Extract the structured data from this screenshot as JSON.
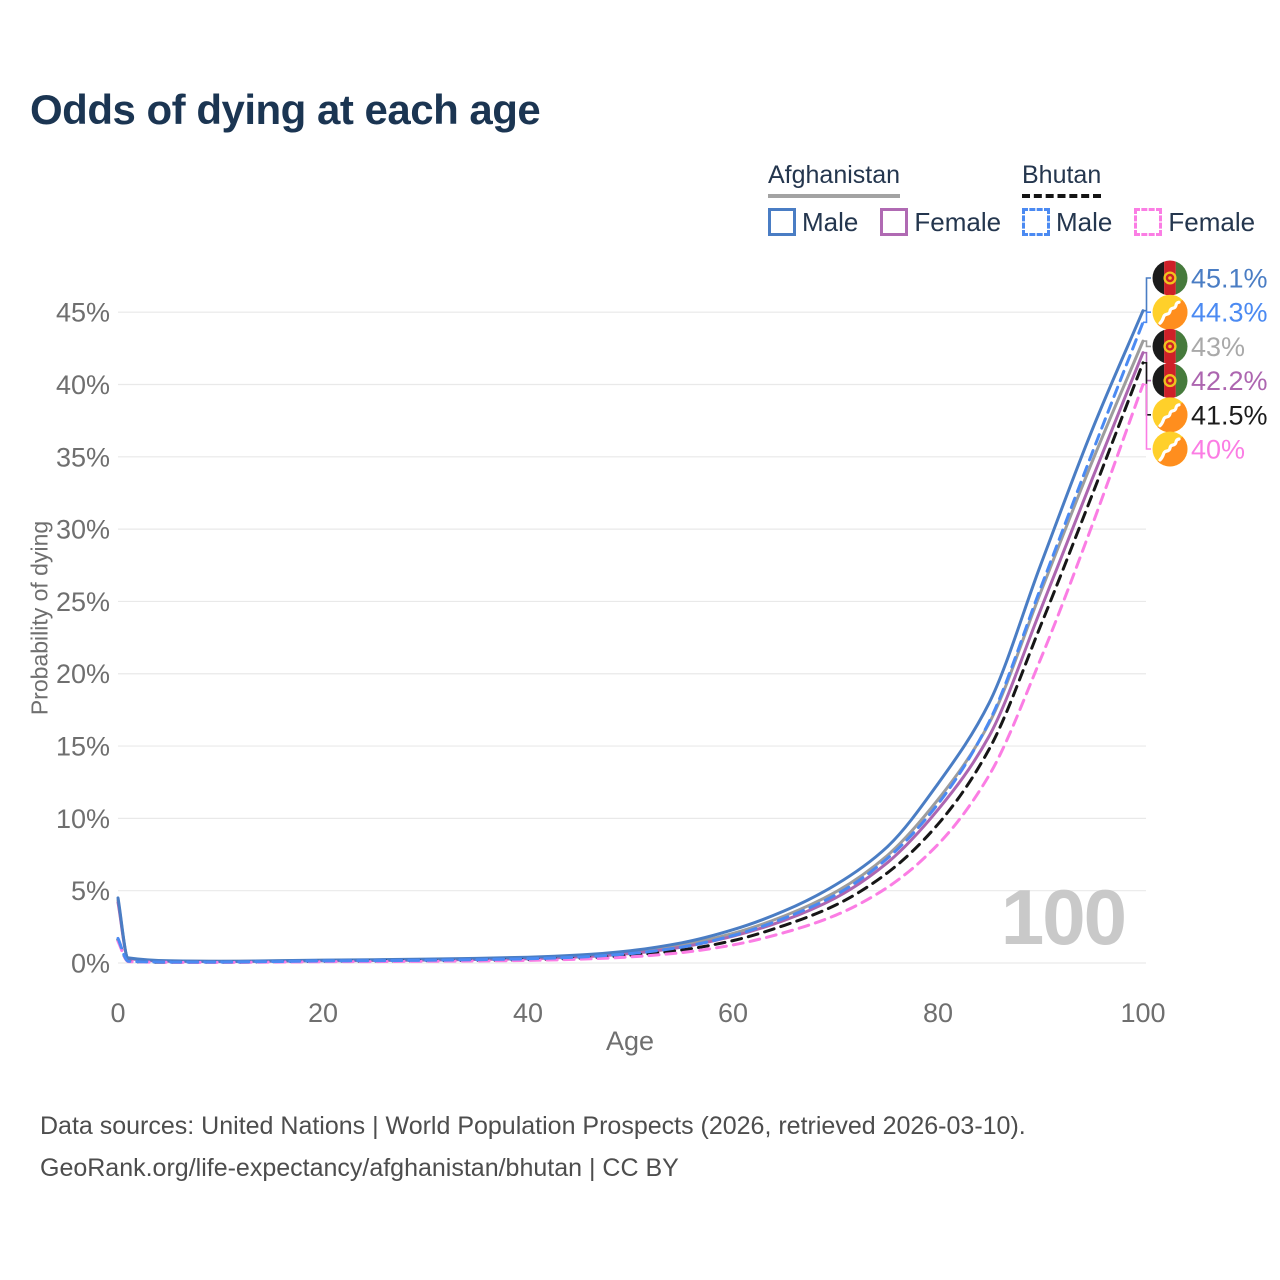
{
  "page": {
    "title": "Odds of dying at each age"
  },
  "legend": {
    "groups": [
      {
        "label": "Afghanistan",
        "rule_color": "#a3a3a3",
        "rule_style": "solid",
        "items": [
          {
            "label": "Male",
            "color": "#4a7dc4",
            "dashed": false
          },
          {
            "label": "Female",
            "color": "#b06ab3",
            "dashed": false
          }
        ]
      },
      {
        "label": "Bhutan",
        "rule_color": "#141414",
        "rule_style": "dashed",
        "items": [
          {
            "label": "Male",
            "color": "#4b8af2",
            "dashed": true
          },
          {
            "label": "Female",
            "color": "#fb7de4",
            "dashed": true
          }
        ]
      }
    ]
  },
  "chart_data": {
    "type": "line",
    "title": "Odds of dying at each age",
    "xlabel": "Age",
    "ylabel": "Probability of dying",
    "x_ticks": [
      0,
      20,
      40,
      60,
      80,
      100
    ],
    "y_ticks_percent": [
      0,
      5,
      10,
      15,
      20,
      25,
      30,
      35,
      40,
      45
    ],
    "xlim": [
      0,
      100
    ],
    "ylim_percent": [
      0,
      47
    ],
    "grid": true,
    "age_watermark": "100",
    "x": [
      0,
      1,
      5,
      10,
      15,
      20,
      25,
      30,
      35,
      40,
      45,
      50,
      55,
      60,
      65,
      70,
      75,
      80,
      85,
      90,
      95,
      100
    ],
    "series": [
      {
        "name": "Afghanistan Both sexes",
        "country": "Afghanistan",
        "sex": "Both",
        "flag": "afghanistan",
        "color": "#9d9d9d",
        "label_color": "#a9a9a9",
        "dashed": false,
        "end_label": "43%",
        "values": [
          4.35,
          0.33,
          0.13,
          0.11,
          0.14,
          0.17,
          0.2,
          0.24,
          0.28,
          0.35,
          0.48,
          0.75,
          1.25,
          2.05,
          3.25,
          4.9,
          7.4,
          11.3,
          16.6,
          25.6,
          34.6,
          43.0
        ]
      },
      {
        "name": "Afghanistan Female",
        "country": "Afghanistan",
        "sex": "Female",
        "flag": "afghanistan",
        "color": "#ad66b0",
        "label_color": "#ad66b0",
        "dashed": false,
        "end_label": "42.2%",
        "values": [
          4.2,
          0.31,
          0.12,
          0.1,
          0.12,
          0.15,
          0.17,
          0.2,
          0.24,
          0.3,
          0.42,
          0.66,
          1.1,
          1.85,
          2.95,
          4.5,
          6.9,
          10.6,
          15.7,
          24.4,
          33.4,
          42.2
        ]
      },
      {
        "name": "Afghanistan Male",
        "country": "Afghanistan",
        "sex": "Male",
        "flag": "afghanistan",
        "color": "#4a7dc4",
        "label_color": "#4a7dc4",
        "dashed": false,
        "end_label": "45.1%",
        "values": [
          4.5,
          0.35,
          0.15,
          0.12,
          0.16,
          0.2,
          0.23,
          0.27,
          0.32,
          0.4,
          0.55,
          0.85,
          1.4,
          2.3,
          3.6,
          5.4,
          8.0,
          12.4,
          18.0,
          27.5,
          36.8,
          45.1
        ]
      },
      {
        "name": "Bhutan Both sexes",
        "country": "Bhutan",
        "sex": "Both",
        "flag": "bhutan",
        "color": "#161616",
        "label_color": "#1c1c1c",
        "dashed": true,
        "end_label": "41.5%",
        "values": [
          1.6,
          0.11,
          0.05,
          0.05,
          0.08,
          0.11,
          0.13,
          0.15,
          0.18,
          0.23,
          0.33,
          0.53,
          0.9,
          1.55,
          2.6,
          4.0,
          6.2,
          9.6,
          14.8,
          23.3,
          32.3,
          41.5
        ]
      },
      {
        "name": "Bhutan Female",
        "country": "Bhutan",
        "sex": "Female",
        "flag": "bhutan",
        "color": "#fb7de4",
        "label_color": "#fb7de4",
        "dashed": true,
        "end_label": "40%",
        "values": [
          1.5,
          0.1,
          0.05,
          0.04,
          0.06,
          0.09,
          0.1,
          0.12,
          0.14,
          0.18,
          0.26,
          0.42,
          0.72,
          1.25,
          2.1,
          3.3,
          5.2,
          8.2,
          13.0,
          21.0,
          30.2,
          40.0
        ]
      },
      {
        "name": "Bhutan Male",
        "country": "Bhutan",
        "sex": "Male",
        "flag": "bhutan",
        "color": "#4b8af2",
        "label_color": "#4b8af2",
        "dashed": true,
        "end_label": "44.3%",
        "values": [
          1.7,
          0.12,
          0.06,
          0.06,
          0.1,
          0.14,
          0.16,
          0.19,
          0.23,
          0.29,
          0.41,
          0.65,
          1.1,
          1.9,
          3.1,
          4.7,
          7.2,
          11.0,
          16.7,
          25.9,
          35.2,
          44.3
        ]
      }
    ]
  },
  "footer": {
    "line1": "Data sources: United Nations | World Population Prospects (2026, retrieved 2026-03-10).",
    "line2": "GeoRank.org/life-expectancy/afghanistan/bhutan | CC BY"
  }
}
